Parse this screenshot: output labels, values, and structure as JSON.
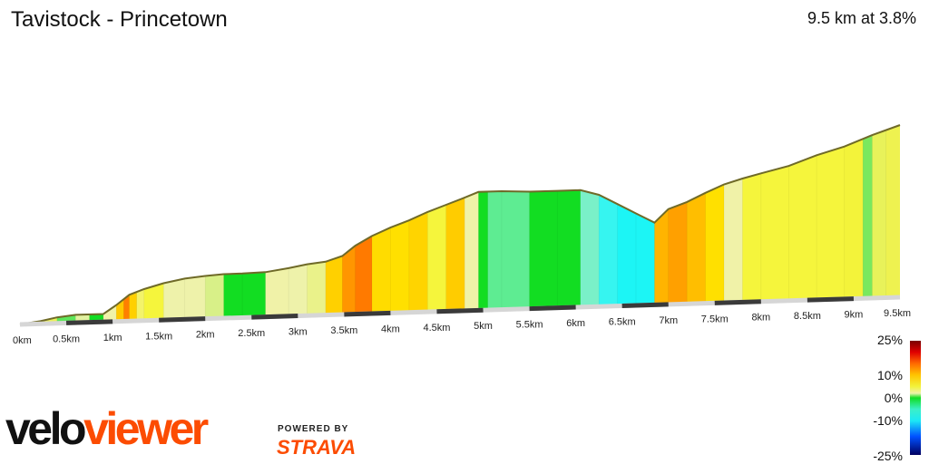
{
  "header": {
    "title": "Tavistock - Princetown",
    "summary": "9.5 km at 3.8%"
  },
  "chart_data": {
    "type": "area",
    "title": "Tavistock - Princetown",
    "xlabel": "",
    "ylabel": "",
    "x_unit": "km",
    "xlim": [
      0,
      9.5
    ],
    "x_ticks": [
      "0km",
      "0.5km",
      "1km",
      "1.5km",
      "2km",
      "2.5km",
      "3km",
      "3.5km",
      "4km",
      "4.5km",
      "5km",
      "5.5km",
      "6km",
      "6.5km",
      "7km",
      "7.5km",
      "8km",
      "8.5km",
      "9km",
      "9.5km"
    ],
    "elevation_profile": {
      "x": [
        0.0,
        0.22,
        0.4,
        0.6,
        0.9,
        1.04,
        1.18,
        1.34,
        1.55,
        1.78,
        2.0,
        2.2,
        2.4,
        2.65,
        2.9,
        3.1,
        3.3,
        3.48,
        3.62,
        3.8,
        4.0,
        4.2,
        4.4,
        4.6,
        4.8,
        4.95,
        5.2,
        5.5,
        5.8,
        6.05,
        6.25,
        6.45,
        6.65,
        6.85,
        7.0,
        7.2,
        7.4,
        7.6,
        7.8,
        8.0,
        8.3,
        8.6,
        8.9,
        9.2,
        9.5
      ],
      "elevation": [
        0,
        4,
        9,
        12,
        12,
        25,
        40,
        48,
        56,
        62,
        65,
        67,
        67,
        68,
        73,
        78,
        81,
        89,
        104,
        118,
        130,
        140,
        152,
        162,
        172,
        180,
        180,
        178,
        178,
        178,
        170,
        155,
        140,
        125,
        145,
        155,
        168,
        180,
        188,
        195,
        205,
        220,
        232,
        248,
        262
      ]
    },
    "gradient_segments": [
      {
        "x0": 0.0,
        "x1": 0.22,
        "color": "#f5f550"
      },
      {
        "x0": 0.22,
        "x1": 0.4,
        "color": "#ecf05a"
      },
      {
        "x0": 0.4,
        "x1": 0.6,
        "color": "#5ce65a"
      },
      {
        "x0": 0.6,
        "x1": 0.75,
        "color": "#e2f2a0"
      },
      {
        "x0": 0.75,
        "x1": 0.9,
        "color": "#12dd22"
      },
      {
        "x0": 0.9,
        "x1": 1.04,
        "color": "#f0f2a8"
      },
      {
        "x0": 1.04,
        "x1": 1.12,
        "color": "#ffc800"
      },
      {
        "x0": 1.12,
        "x1": 1.18,
        "color": "#ff7f00"
      },
      {
        "x0": 1.18,
        "x1": 1.26,
        "color": "#ffd000"
      },
      {
        "x0": 1.26,
        "x1": 1.34,
        "color": "#f3f36a"
      },
      {
        "x0": 1.34,
        "x1": 1.55,
        "color": "#f5f53c"
      },
      {
        "x0": 1.55,
        "x1": 1.78,
        "color": "#eef2aa"
      },
      {
        "x0": 1.78,
        "x1": 2.0,
        "color": "#eef2aa"
      },
      {
        "x0": 2.0,
        "x1": 2.2,
        "color": "#d8f088"
      },
      {
        "x0": 2.2,
        "x1": 2.4,
        "color": "#12dd22"
      },
      {
        "x0": 2.4,
        "x1": 2.65,
        "color": "#12dd22"
      },
      {
        "x0": 2.65,
        "x1": 2.9,
        "color": "#f0f2a8"
      },
      {
        "x0": 2.9,
        "x1": 3.1,
        "color": "#eef2aa"
      },
      {
        "x0": 3.1,
        "x1": 3.3,
        "color": "#eaf28a"
      },
      {
        "x0": 3.3,
        "x1": 3.48,
        "color": "#ffd000"
      },
      {
        "x0": 3.48,
        "x1": 3.62,
        "color": "#ff9600"
      },
      {
        "x0": 3.62,
        "x1": 3.8,
        "color": "#ff7a00"
      },
      {
        "x0": 3.8,
        "x1": 4.0,
        "color": "#ffdc00"
      },
      {
        "x0": 4.0,
        "x1": 4.2,
        "color": "#ffe000"
      },
      {
        "x0": 4.2,
        "x1": 4.4,
        "color": "#ffd400"
      },
      {
        "x0": 4.4,
        "x1": 4.6,
        "color": "#f5f53c"
      },
      {
        "x0": 4.6,
        "x1": 4.8,
        "color": "#ffcc00"
      },
      {
        "x0": 4.8,
        "x1": 4.95,
        "color": "#f0f2a8"
      },
      {
        "x0": 4.95,
        "x1": 5.05,
        "color": "#12dd22"
      },
      {
        "x0": 5.05,
        "x1": 5.2,
        "color": "#5eec92"
      },
      {
        "x0": 5.2,
        "x1": 5.5,
        "color": "#5eec92"
      },
      {
        "x0": 5.5,
        "x1": 5.8,
        "color": "#12dd22"
      },
      {
        "x0": 5.8,
        "x1": 6.05,
        "color": "#12dd22"
      },
      {
        "x0": 6.05,
        "x1": 6.25,
        "color": "#7af0c8"
      },
      {
        "x0": 6.25,
        "x1": 6.45,
        "color": "#36f5f0"
      },
      {
        "x0": 6.45,
        "x1": 6.65,
        "color": "#1cf5f5"
      },
      {
        "x0": 6.65,
        "x1": 6.85,
        "color": "#1cf5f5"
      },
      {
        "x0": 6.85,
        "x1": 7.0,
        "color": "#ffb400"
      },
      {
        "x0": 7.0,
        "x1": 7.2,
        "color": "#ffa000"
      },
      {
        "x0": 7.2,
        "x1": 7.4,
        "color": "#ffbe00"
      },
      {
        "x0": 7.4,
        "x1": 7.6,
        "color": "#ffe000"
      },
      {
        "x0": 7.6,
        "x1": 7.8,
        "color": "#f0f2a8"
      },
      {
        "x0": 7.8,
        "x1": 8.0,
        "color": "#f5f53c"
      },
      {
        "x0": 8.0,
        "x1": 8.3,
        "color": "#f5f53c"
      },
      {
        "x0": 8.3,
        "x1": 8.6,
        "color": "#f5f53c"
      },
      {
        "x0": 8.6,
        "x1": 8.9,
        "color": "#f5f53c"
      },
      {
        "x0": 8.9,
        "x1": 9.1,
        "color": "#f3f33a"
      },
      {
        "x0": 9.1,
        "x1": 9.2,
        "color": "#7ae85e"
      },
      {
        "x0": 9.2,
        "x1": 9.35,
        "color": "#e8f25a"
      },
      {
        "x0": 9.35,
        "x1": 9.5,
        "color": "#eef250"
      }
    ],
    "gradient_legend": {
      "labels": [
        "25%",
        "10%",
        "0%",
        "-10%",
        "-25%"
      ],
      "values": [
        25,
        10,
        0,
        -10,
        -25
      ],
      "stops": [
        {
          "value": 25,
          "color": "#7a0000"
        },
        {
          "value": 20,
          "color": "#e00000"
        },
        {
          "value": 15,
          "color": "#ff6a00"
        },
        {
          "value": 10,
          "color": "#ffc400"
        },
        {
          "value": 5,
          "color": "#f2f23a"
        },
        {
          "value": 2,
          "color": "#eef2aa"
        },
        {
          "value": 0,
          "color": "#12dd22"
        },
        {
          "value": -5,
          "color": "#3bf0c8"
        },
        {
          "value": -10,
          "color": "#1ce8f5"
        },
        {
          "value": -17,
          "color": "#0050ff"
        },
        {
          "value": -25,
          "color": "#000060"
        }
      ]
    }
  },
  "branding": {
    "logo_part1": "velo",
    "logo_part2": "viewer",
    "powered_by": "POWERED BY",
    "strava": "STRAVA"
  }
}
